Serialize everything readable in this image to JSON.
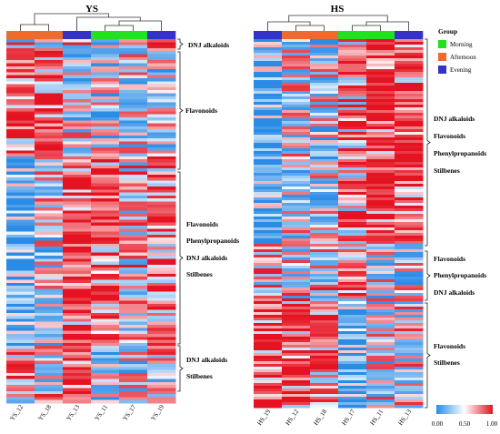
{
  "chart_data": [
    {
      "type": "heatmap",
      "title": "YS",
      "columns": [
        "YS_12",
        "YS_18",
        "YS_13",
        "YS_11",
        "YS_17",
        "YS_19"
      ],
      "column_groups": [
        "Afternoon",
        "Afternoon",
        "Evening",
        "Morning",
        "Morning",
        "Evening"
      ],
      "row_cluster_annotations": [
        {
          "labels": [
            "DNJ alkaloids"
          ]
        },
        {
          "labels": [
            "Flavonoids"
          ]
        },
        {
          "labels": [
            "Flavonoids",
            "Phenylpropanoids",
            "DNJ alkaloids",
            "Stilbenes"
          ]
        },
        {
          "labels": [
            "DNJ alkaloids",
            "Stilbenes"
          ]
        }
      ],
      "clusters": [
        {
          "rows": 3,
          "weights": [
            0.55,
            0.35,
            0.55,
            0.45,
            0.4,
            0.95
          ]
        },
        {
          "rows": 36,
          "weights": [
            0.8,
            0.8,
            0.45,
            0.4,
            0.45,
            0.35
          ]
        },
        {
          "rows": 64,
          "weights": [
            0.12,
            0.45,
            0.85,
            0.8,
            0.55,
            0.75
          ]
        },
        {
          "rows": 18,
          "weights": [
            0.6,
            0.55,
            0.85,
            0.3,
            0.45,
            0.5
          ]
        }
      ]
    },
    {
      "type": "heatmap",
      "title": "HS",
      "columns": [
        "HS_19",
        "HS_12",
        "HS_18",
        "HS_17",
        "HS_11",
        "HS_13"
      ],
      "column_groups": [
        "Evening",
        "Afternoon",
        "Afternoon",
        "Morning",
        "Morning",
        "Evening"
      ],
      "row_cluster_annotations": [
        {
          "labels": [
            "DNJ alkaloids",
            "Flavonoids",
            "Phenylpropanoids",
            "Stilbenes"
          ]
        },
        {
          "labels": [
            "Flavonoids",
            "Phenylpropanoids",
            "DNJ alkaloids"
          ]
        },
        {
          "labels": [
            "Flavonoids",
            "Stilbenes"
          ]
        }
      ],
      "clusters": [
        {
          "rows": 75,
          "weights": [
            0.15,
            0.45,
            0.4,
            0.65,
            0.85,
            0.85
          ]
        },
        {
          "rows": 20,
          "weights": [
            0.6,
            0.5,
            0.55,
            0.8,
            0.4,
            0.4
          ]
        },
        {
          "rows": 40,
          "weights": [
            0.85,
            0.8,
            0.75,
            0.12,
            0.45,
            0.55
          ]
        }
      ]
    }
  ],
  "legend": {
    "title": "Group",
    "items": [
      {
        "label": "Morning",
        "color": "#22e11e"
      },
      {
        "label": "Afternoon",
        "color": "#ee6a2d"
      },
      {
        "label": "Evening",
        "color": "#3532c9"
      }
    ]
  },
  "colorbar": {
    "min_label": "0.00",
    "mid_label": "0.50",
    "max_label": "1.00",
    "low_color": "#2b8ce6",
    "mid_color": "#ffffff",
    "high_color": "#e51321"
  }
}
